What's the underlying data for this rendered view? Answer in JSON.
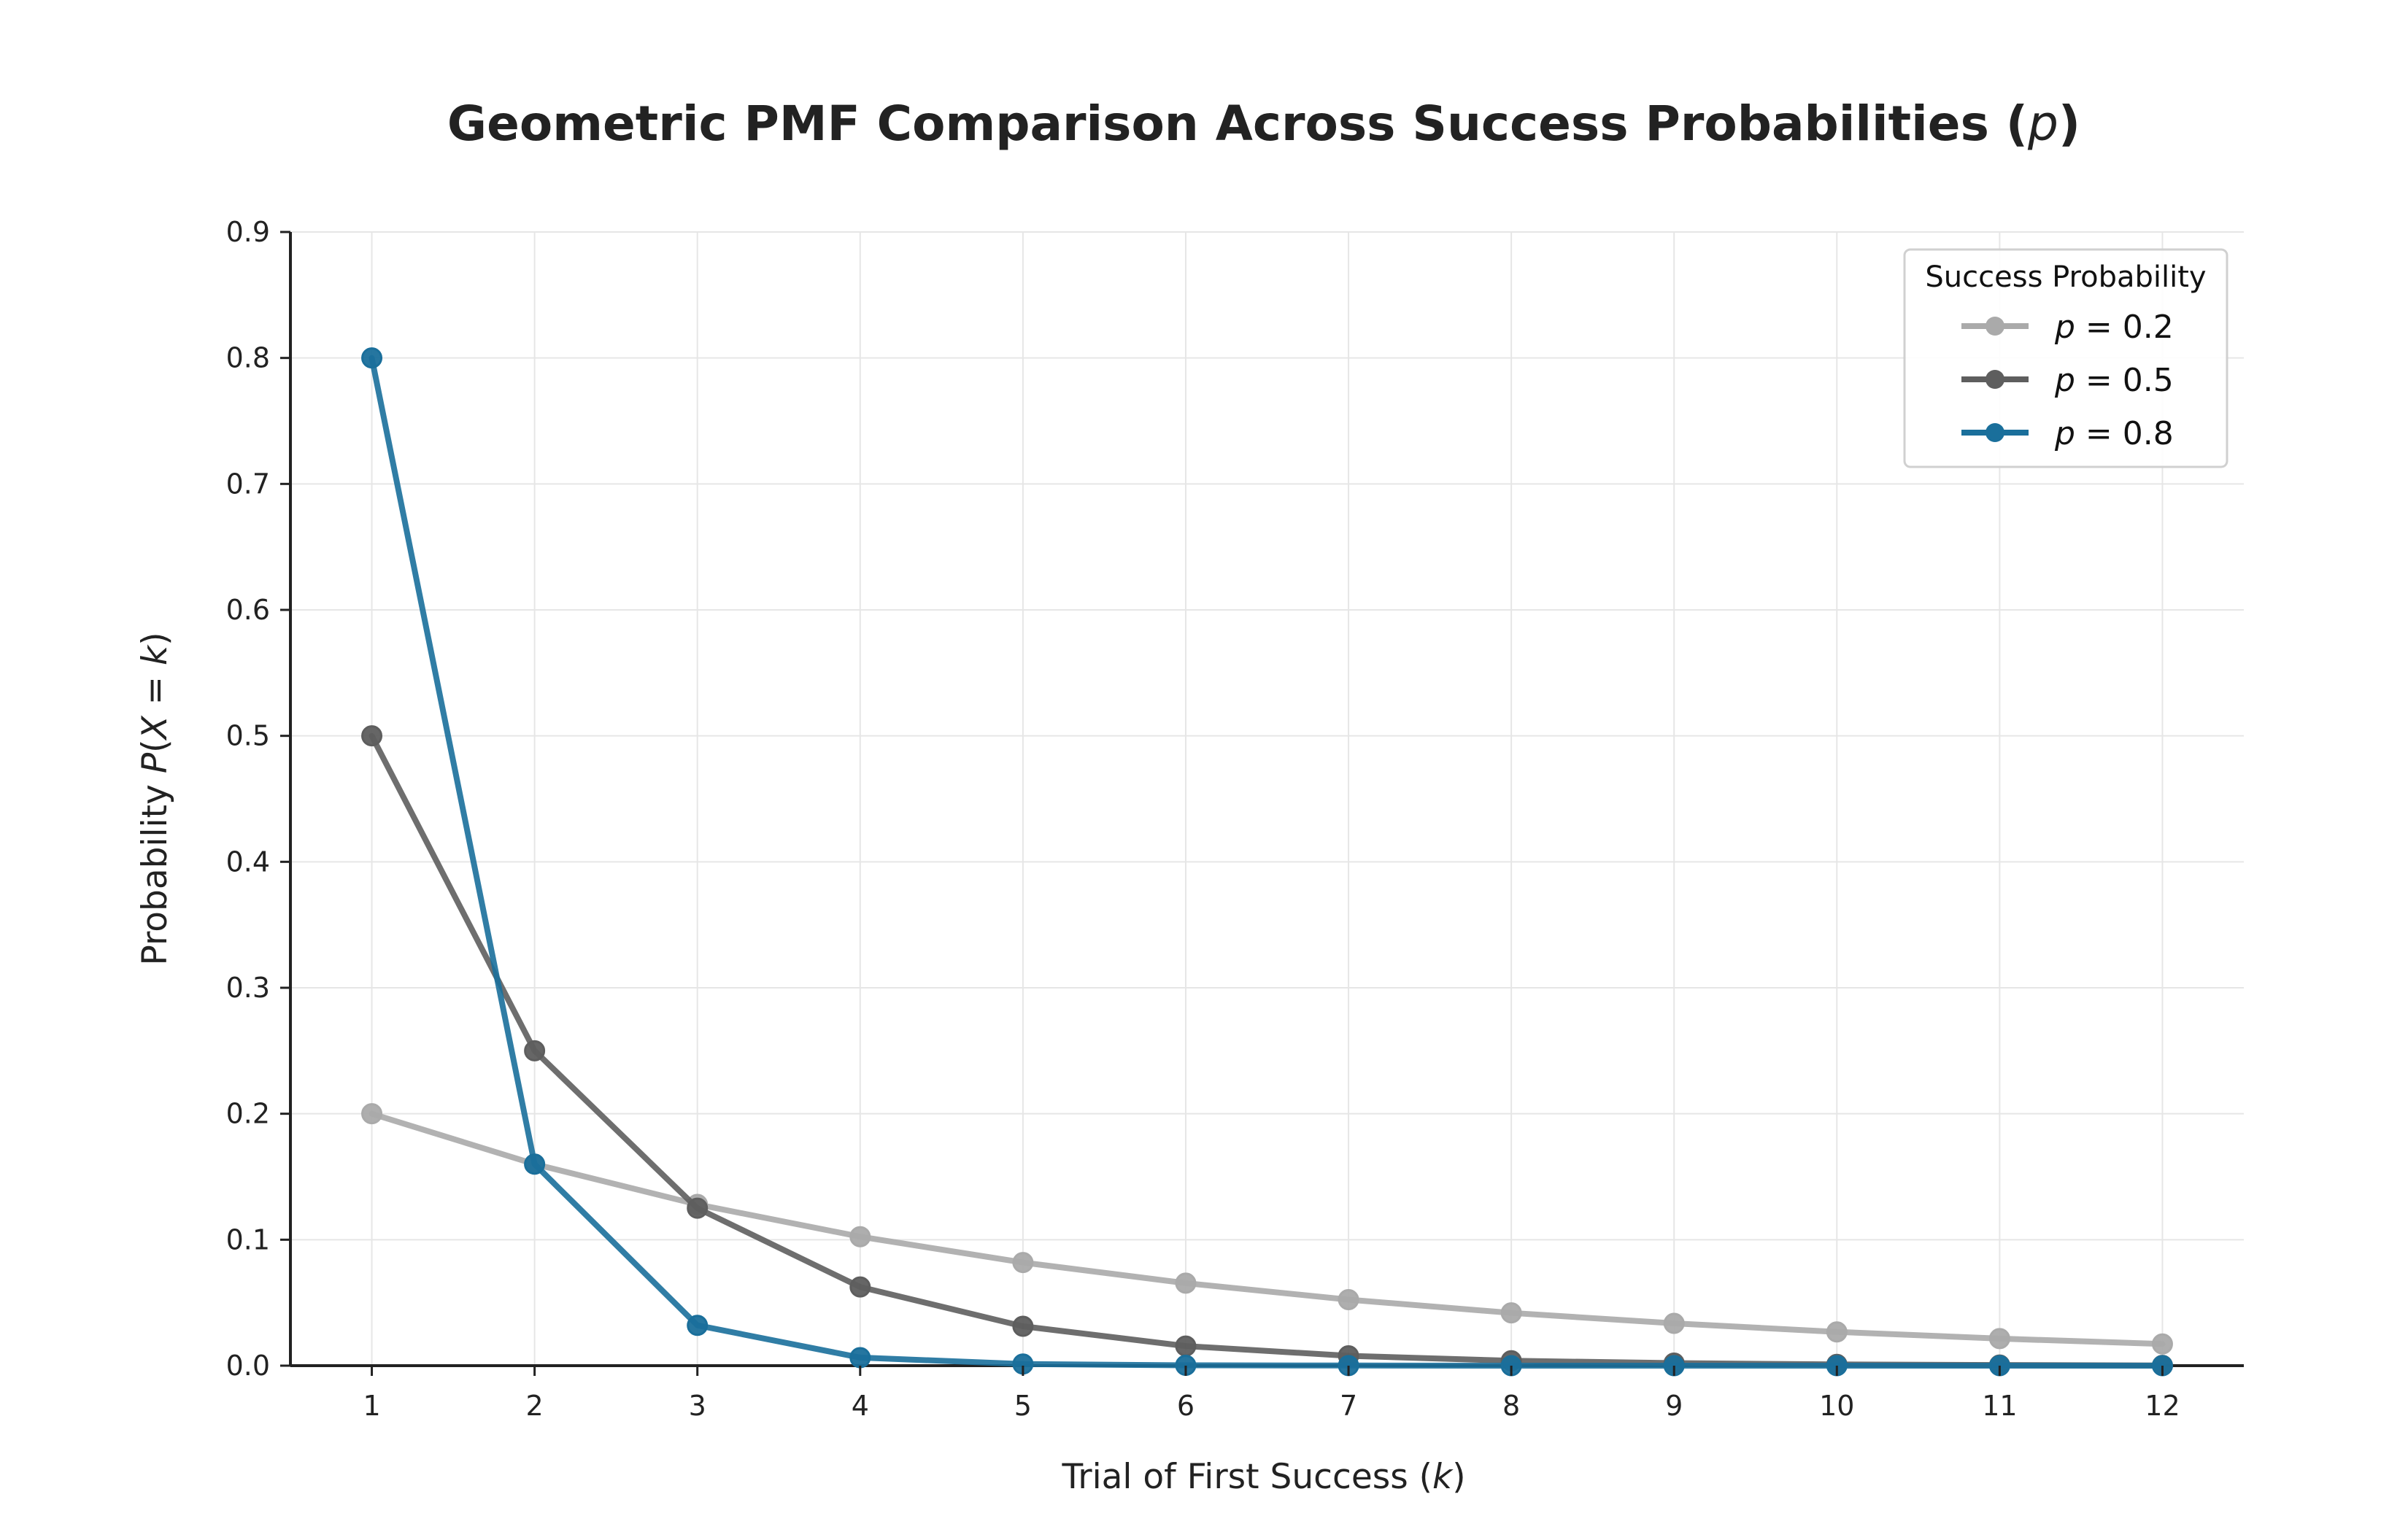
{
  "chart_data": {
    "type": "line",
    "title": "Geometric PMF Comparison Across Success Probabilities (",
    "title_var": "p",
    "title_end": ")",
    "xlabel": "Trial of First Success (",
    "xlabel_var": "k",
    "xlabel_end": ")",
    "ylabel_prefix": "Probability ",
    "ylabel_math": "P",
    "ylabel_open": "(",
    "ylabel_x": "X",
    "ylabel_eq": " = ",
    "ylabel_k": "k",
    "ylabel_close": ")",
    "x": [
      1,
      2,
      3,
      4,
      5,
      6,
      7,
      8,
      9,
      10,
      11,
      12
    ],
    "xlim": [
      0.5,
      12.5
    ],
    "ylim": [
      0,
      0.9
    ],
    "yticks": [
      0.0,
      0.1,
      0.2,
      0.3,
      0.4,
      0.5,
      0.6,
      0.7,
      0.8,
      0.9
    ],
    "ytick_labels": [
      "0.0",
      "0.1",
      "0.2",
      "0.3",
      "0.4",
      "0.5",
      "0.6",
      "0.7",
      "0.8",
      "0.9"
    ],
    "xtick_labels": [
      "1",
      "2",
      "3",
      "4",
      "5",
      "6",
      "7",
      "8",
      "9",
      "10",
      "11",
      "12"
    ],
    "grid": true,
    "legend": {
      "title": "Success Probability",
      "placement": "top-right"
    },
    "series": [
      {
        "name": "p = 0.2",
        "name_var": "p",
        "name_eq": " = ",
        "name_val": "0.2",
        "color": "#aaaaaa",
        "values": [
          0.2,
          0.16,
          0.128,
          0.1024,
          0.0819,
          0.0655,
          0.0524,
          0.0419,
          0.0336,
          0.0268,
          0.0215,
          0.0172
        ]
      },
      {
        "name": "p = 0.5",
        "name_var": "p",
        "name_eq": " = ",
        "name_val": "0.5",
        "color": "#5e5e5e",
        "values": [
          0.5,
          0.25,
          0.125,
          0.0625,
          0.0313,
          0.0156,
          0.0078,
          0.0039,
          0.002,
          0.001,
          0.0005,
          0.0002
        ]
      },
      {
        "name": "p = 0.8",
        "name_var": "p",
        "name_eq": " = ",
        "name_val": "0.8",
        "color": "#1a6f9b",
        "values": [
          0.8,
          0.16,
          0.032,
          0.0064,
          0.0013,
          0.0003,
          0.0001,
          0.0,
          0.0,
          0.0,
          0.0,
          0.0
        ]
      }
    ]
  }
}
